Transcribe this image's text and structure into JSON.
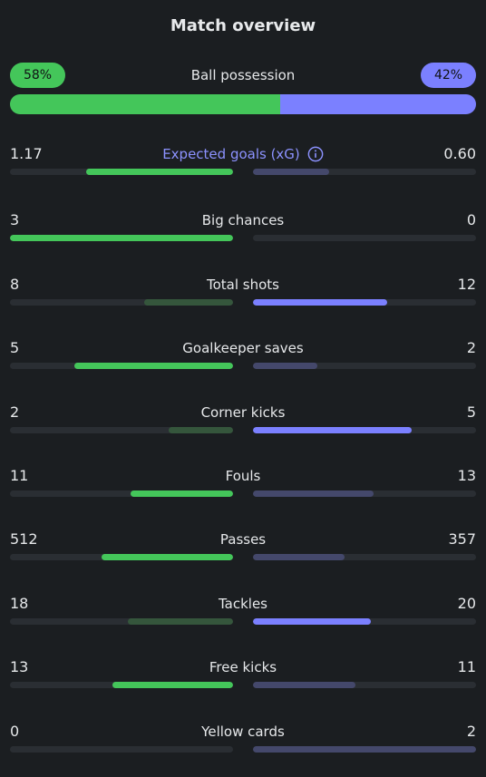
{
  "title": "Match overview",
  "possession": {
    "label": "Ball possession",
    "home": "58%",
    "away": "42%",
    "home_fraction": 0.58,
    "away_fraction": 0.42
  },
  "colors": {
    "home_accent": "#44c65a",
    "away_accent": "#7b80ff",
    "label_accent": "#8c92ff"
  },
  "stats": [
    {
      "label": "Expected goals (xG)",
      "home": "1.17",
      "away": "0.60",
      "home_fill": 0.66,
      "away_fill": 0.34,
      "winner": "home",
      "info_icon": "info-icon"
    },
    {
      "label": "Big chances",
      "home": "3",
      "away": "0",
      "home_fill": 1.0,
      "away_fill": 0.0,
      "winner": "home"
    },
    {
      "label": "Total shots",
      "home": "8",
      "away": "12",
      "home_fill": 0.4,
      "away_fill": 0.6,
      "winner": "away"
    },
    {
      "label": "Goalkeeper saves",
      "home": "5",
      "away": "2",
      "home_fill": 0.71,
      "away_fill": 0.29,
      "winner": "home"
    },
    {
      "label": "Corner kicks",
      "home": "2",
      "away": "5",
      "home_fill": 0.29,
      "away_fill": 0.71,
      "winner": "away"
    },
    {
      "label": "Fouls",
      "home": "11",
      "away": "13",
      "home_fill": 0.46,
      "away_fill": 0.54,
      "winner": "home"
    },
    {
      "label": "Passes",
      "home": "512",
      "away": "357",
      "home_fill": 0.59,
      "away_fill": 0.41,
      "winner": "home"
    },
    {
      "label": "Tackles",
      "home": "18",
      "away": "20",
      "home_fill": 0.47,
      "away_fill": 0.53,
      "winner": "away"
    },
    {
      "label": "Free kicks",
      "home": "13",
      "away": "11",
      "home_fill": 0.54,
      "away_fill": 0.46,
      "winner": "home"
    },
    {
      "label": "Yellow cards",
      "home": "0",
      "away": "2",
      "home_fill": 0.0,
      "away_fill": 1.0,
      "winner": "home"
    }
  ]
}
